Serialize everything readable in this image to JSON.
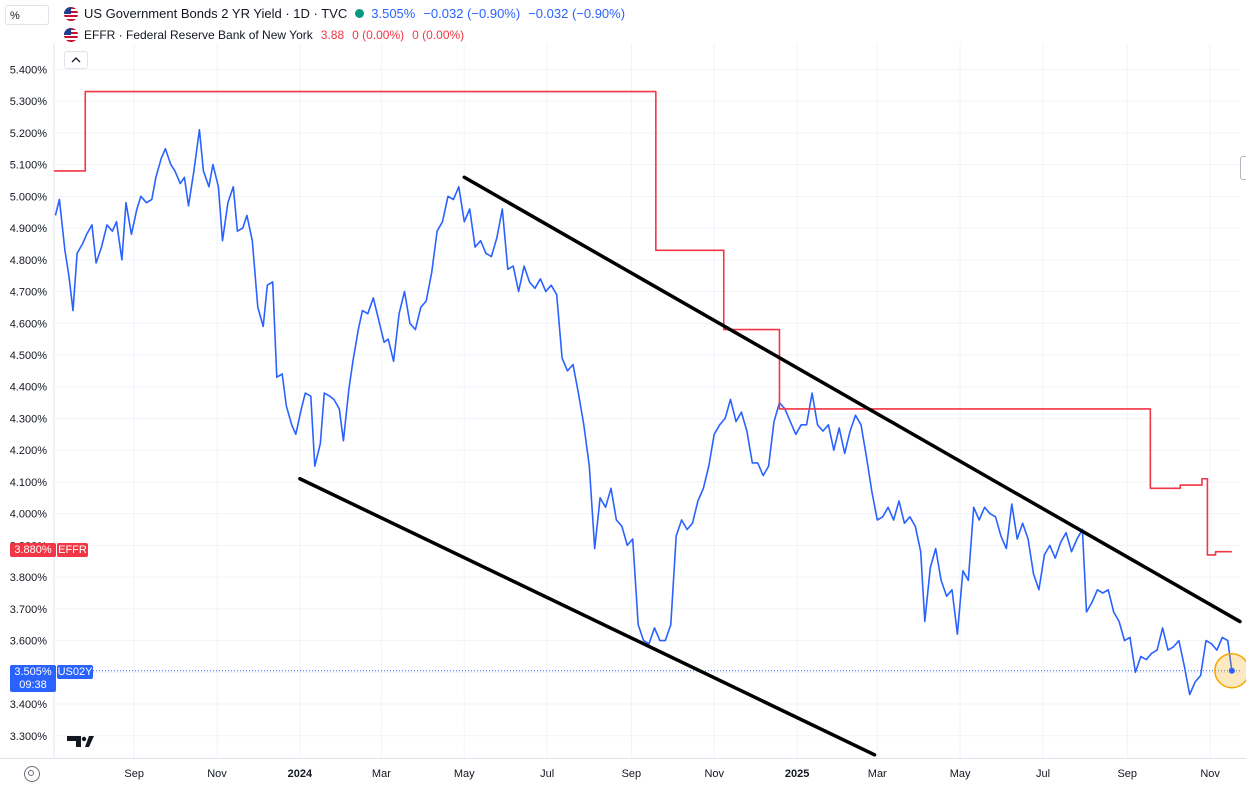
{
  "toolbar": {
    "unit_label": "%"
  },
  "legend": {
    "us02y": {
      "title": "US Government Bonds 2 YR Yield · 1D · TVC",
      "last": "3.505%",
      "change": "−0.032 (−0.90%)",
      "change2": "−0.032 (−0.90%)",
      "color": "#2962ff",
      "status_color": "#089981"
    },
    "effr": {
      "title": "EFFR · Federal Reserve Bank of New York",
      "last": "3.88",
      "change": "0 (0.00%)",
      "change2": "0 (0.00%)",
      "color": "#f23645"
    }
  },
  "price_tags": {
    "effr_value": "3.880%",
    "effr_name": "EFFR",
    "us02y_value": "3.505%",
    "us02y_countdown": "09:38",
    "us02y_name": "US02Y"
  },
  "chart_data": {
    "type": "line",
    "y_unit": "%",
    "ylim": [
      3.23,
      5.48
    ],
    "xlim": [
      "2023-07-04",
      "2025-11-23"
    ],
    "y_ticks": [
      "5.400%",
      "5.300%",
      "5.200%",
      "5.100%",
      "5.000%",
      "4.900%",
      "4.800%",
      "4.700%",
      "4.600%",
      "4.500%",
      "4.400%",
      "4.300%",
      "4.200%",
      "4.100%",
      "4.000%",
      "3.900%",
      "3.800%",
      "3.700%",
      "3.600%",
      "3.500%",
      "3.400%",
      "3.300%"
    ],
    "x_ticks": [
      {
        "date": "2023-09-01",
        "label": "Sep"
      },
      {
        "date": "2023-11-01",
        "label": "Nov"
      },
      {
        "date": "2024-01-01",
        "label": "2024",
        "bold": true
      },
      {
        "date": "2024-03-01",
        "label": "Mar"
      },
      {
        "date": "2024-05-01",
        "label": "May"
      },
      {
        "date": "2024-07-01",
        "label": "Jul"
      },
      {
        "date": "2024-09-01",
        "label": "Sep"
      },
      {
        "date": "2024-11-01",
        "label": "Nov"
      },
      {
        "date": "2025-01-01",
        "label": "2025",
        "bold": true
      },
      {
        "date": "2025-03-01",
        "label": "Mar"
      },
      {
        "date": "2025-05-01",
        "label": "May"
      },
      {
        "date": "2025-07-01",
        "label": "Jul"
      },
      {
        "date": "2025-09-01",
        "label": "Sep"
      },
      {
        "date": "2025-11-01",
        "label": "Nov"
      }
    ],
    "grid": true,
    "series": [
      {
        "name": "US02Y",
        "color": "#2962ff",
        "style": "line",
        "points": [
          [
            "2023-07-05",
            4.94
          ],
          [
            "2023-07-08",
            4.99
          ],
          [
            "2023-07-12",
            4.83
          ],
          [
            "2023-07-15",
            4.75
          ],
          [
            "2023-07-18",
            4.64
          ],
          [
            "2023-07-21",
            4.82
          ],
          [
            "2023-07-25",
            4.85
          ],
          [
            "2023-07-28",
            4.88
          ],
          [
            "2023-08-01",
            4.91
          ],
          [
            "2023-08-04",
            4.79
          ],
          [
            "2023-08-08",
            4.84
          ],
          [
            "2023-08-12",
            4.91
          ],
          [
            "2023-08-16",
            4.89
          ],
          [
            "2023-08-19",
            4.92
          ],
          [
            "2023-08-23",
            4.8
          ],
          [
            "2023-08-26",
            4.98
          ],
          [
            "2023-08-30",
            4.88
          ],
          [
            "2023-09-03",
            4.96
          ],
          [
            "2023-09-06",
            5.0
          ],
          [
            "2023-09-10",
            4.98
          ],
          [
            "2023-09-14",
            4.99
          ],
          [
            "2023-09-17",
            5.06
          ],
          [
            "2023-09-21",
            5.12
          ],
          [
            "2023-09-24",
            5.15
          ],
          [
            "2023-09-28",
            5.1
          ],
          [
            "2023-10-01",
            5.08
          ],
          [
            "2023-10-05",
            5.04
          ],
          [
            "2023-10-08",
            5.06
          ],
          [
            "2023-10-11",
            4.97
          ],
          [
            "2023-10-15",
            5.08
          ],
          [
            "2023-10-19",
            5.21
          ],
          [
            "2023-10-22",
            5.08
          ],
          [
            "2023-10-26",
            5.03
          ],
          [
            "2023-10-29",
            5.1
          ],
          [
            "2023-11-02",
            5.03
          ],
          [
            "2023-11-05",
            4.86
          ],
          [
            "2023-11-09",
            4.98
          ],
          [
            "2023-11-13",
            5.03
          ],
          [
            "2023-11-16",
            4.89
          ],
          [
            "2023-11-20",
            4.9
          ],
          [
            "2023-11-23",
            4.94
          ],
          [
            "2023-11-27",
            4.86
          ],
          [
            "2023-12-01",
            4.65
          ],
          [
            "2023-12-05",
            4.59
          ],
          [
            "2023-12-08",
            4.72
          ],
          [
            "2023-12-12",
            4.73
          ],
          [
            "2023-12-15",
            4.43
          ],
          [
            "2023-12-19",
            4.44
          ],
          [
            "2023-12-22",
            4.34
          ],
          [
            "2023-12-26",
            4.28
          ],
          [
            "2023-12-29",
            4.25
          ],
          [
            "2024-01-02",
            4.33
          ],
          [
            "2024-01-05",
            4.38
          ],
          [
            "2024-01-09",
            4.37
          ],
          [
            "2024-01-12",
            4.15
          ],
          [
            "2024-01-16",
            4.22
          ],
          [
            "2024-01-19",
            4.38
          ],
          [
            "2024-01-23",
            4.37
          ],
          [
            "2024-01-26",
            4.36
          ],
          [
            "2024-01-30",
            4.33
          ],
          [
            "2024-02-02",
            4.23
          ],
          [
            "2024-02-06",
            4.39
          ],
          [
            "2024-02-09",
            4.48
          ],
          [
            "2024-02-13",
            4.58
          ],
          [
            "2024-02-16",
            4.64
          ],
          [
            "2024-02-20",
            4.63
          ],
          [
            "2024-02-24",
            4.68
          ],
          [
            "2024-02-28",
            4.61
          ],
          [
            "2024-03-03",
            4.54
          ],
          [
            "2024-03-06",
            4.55
          ],
          [
            "2024-03-10",
            4.48
          ],
          [
            "2024-03-14",
            4.63
          ],
          [
            "2024-03-18",
            4.7
          ],
          [
            "2024-03-22",
            4.6
          ],
          [
            "2024-03-26",
            4.58
          ],
          [
            "2024-03-30",
            4.65
          ],
          [
            "2024-04-03",
            4.67
          ],
          [
            "2024-04-07",
            4.76
          ],
          [
            "2024-04-11",
            4.89
          ],
          [
            "2024-04-15",
            4.92
          ],
          [
            "2024-04-19",
            5.0
          ],
          [
            "2024-04-23",
            4.99
          ],
          [
            "2024-04-27",
            5.03
          ],
          [
            "2024-05-01",
            4.92
          ],
          [
            "2024-05-05",
            4.96
          ],
          [
            "2024-05-09",
            4.84
          ],
          [
            "2024-05-13",
            4.86
          ],
          [
            "2024-05-17",
            4.82
          ],
          [
            "2024-05-21",
            4.81
          ],
          [
            "2024-05-25",
            4.87
          ],
          [
            "2024-05-29",
            4.96
          ],
          [
            "2024-06-02",
            4.77
          ],
          [
            "2024-06-06",
            4.78
          ],
          [
            "2024-06-10",
            4.7
          ],
          [
            "2024-06-14",
            4.78
          ],
          [
            "2024-06-18",
            4.73
          ],
          [
            "2024-06-22",
            4.71
          ],
          [
            "2024-06-26",
            4.74
          ],
          [
            "2024-06-30",
            4.7
          ],
          [
            "2024-07-04",
            4.72
          ],
          [
            "2024-07-08",
            4.69
          ],
          [
            "2024-07-12",
            4.49
          ],
          [
            "2024-07-16",
            4.45
          ],
          [
            "2024-07-20",
            4.47
          ],
          [
            "2024-07-24",
            4.38
          ],
          [
            "2024-07-28",
            4.28
          ],
          [
            "2024-08-01",
            4.15
          ],
          [
            "2024-08-05",
            3.89
          ],
          [
            "2024-08-09",
            4.05
          ],
          [
            "2024-08-13",
            4.02
          ],
          [
            "2024-08-17",
            4.08
          ],
          [
            "2024-08-21",
            3.98
          ],
          [
            "2024-08-25",
            3.96
          ],
          [
            "2024-08-29",
            3.9
          ],
          [
            "2024-09-02",
            3.92
          ],
          [
            "2024-09-06",
            3.65
          ],
          [
            "2024-09-10",
            3.6
          ],
          [
            "2024-09-14",
            3.59
          ],
          [
            "2024-09-18",
            3.64
          ],
          [
            "2024-09-22",
            3.6
          ],
          [
            "2024-09-26",
            3.6
          ],
          [
            "2024-09-30",
            3.65
          ],
          [
            "2024-10-04",
            3.93
          ],
          [
            "2024-10-08",
            3.98
          ],
          [
            "2024-10-12",
            3.95
          ],
          [
            "2024-10-16",
            3.97
          ],
          [
            "2024-10-20",
            4.04
          ],
          [
            "2024-10-24",
            4.08
          ],
          [
            "2024-10-28",
            4.15
          ],
          [
            "2024-11-01",
            4.25
          ],
          [
            "2024-11-05",
            4.28
          ],
          [
            "2024-11-09",
            4.3
          ],
          [
            "2024-11-13",
            4.36
          ],
          [
            "2024-11-17",
            4.29
          ],
          [
            "2024-11-21",
            4.32
          ],
          [
            "2024-11-25",
            4.26
          ],
          [
            "2024-11-29",
            4.16
          ],
          [
            "2024-12-03",
            4.16
          ],
          [
            "2024-12-07",
            4.12
          ],
          [
            "2024-12-11",
            4.15
          ],
          [
            "2024-12-15",
            4.29
          ],
          [
            "2024-12-19",
            4.35
          ],
          [
            "2024-12-23",
            4.33
          ],
          [
            "2024-12-27",
            4.29
          ],
          [
            "2024-12-31",
            4.25
          ],
          [
            "2025-01-04",
            4.28
          ],
          [
            "2025-01-08",
            4.28
          ],
          [
            "2025-01-12",
            4.38
          ],
          [
            "2025-01-16",
            4.28
          ],
          [
            "2025-01-20",
            4.26
          ],
          [
            "2025-01-24",
            4.28
          ],
          [
            "2025-01-28",
            4.2
          ],
          [
            "2025-02-01",
            4.27
          ],
          [
            "2025-02-05",
            4.19
          ],
          [
            "2025-02-09",
            4.26
          ],
          [
            "2025-02-13",
            4.31
          ],
          [
            "2025-02-17",
            4.28
          ],
          [
            "2025-02-21",
            4.18
          ],
          [
            "2025-02-25",
            4.07
          ],
          [
            "2025-03-01",
            3.98
          ],
          [
            "2025-03-05",
            3.99
          ],
          [
            "2025-03-09",
            4.02
          ],
          [
            "2025-03-13",
            3.98
          ],
          [
            "2025-03-17",
            4.04
          ],
          [
            "2025-03-21",
            3.97
          ],
          [
            "2025-03-25",
            3.99
          ],
          [
            "2025-03-29",
            3.96
          ],
          [
            "2025-04-02",
            3.88
          ],
          [
            "2025-04-05",
            3.66
          ],
          [
            "2025-04-09",
            3.83
          ],
          [
            "2025-04-13",
            3.89
          ],
          [
            "2025-04-17",
            3.79
          ],
          [
            "2025-04-21",
            3.74
          ],
          [
            "2025-04-25",
            3.76
          ],
          [
            "2025-04-29",
            3.62
          ],
          [
            "2025-05-03",
            3.82
          ],
          [
            "2025-05-07",
            3.79
          ],
          [
            "2025-05-11",
            4.02
          ],
          [
            "2025-05-15",
            3.98
          ],
          [
            "2025-05-19",
            4.02
          ],
          [
            "2025-05-23",
            4.0
          ],
          [
            "2025-05-27",
            3.99
          ],
          [
            "2025-05-31",
            3.93
          ],
          [
            "2025-06-04",
            3.89
          ],
          [
            "2025-06-08",
            4.03
          ],
          [
            "2025-06-12",
            3.92
          ],
          [
            "2025-06-16",
            3.97
          ],
          [
            "2025-06-20",
            3.92
          ],
          [
            "2025-06-24",
            3.81
          ],
          [
            "2025-06-28",
            3.76
          ],
          [
            "2025-07-02",
            3.87
          ],
          [
            "2025-07-06",
            3.9
          ],
          [
            "2025-07-10",
            3.86
          ],
          [
            "2025-07-14",
            3.91
          ],
          [
            "2025-07-18",
            3.94
          ],
          [
            "2025-07-22",
            3.88
          ],
          [
            "2025-07-26",
            3.92
          ],
          [
            "2025-07-30",
            3.95
          ],
          [
            "2025-08-02",
            3.69
          ],
          [
            "2025-08-06",
            3.72
          ],
          [
            "2025-08-10",
            3.76
          ],
          [
            "2025-08-14",
            3.75
          ],
          [
            "2025-08-18",
            3.76
          ],
          [
            "2025-08-22",
            3.69
          ],
          [
            "2025-08-26",
            3.66
          ],
          [
            "2025-08-30",
            3.6
          ],
          [
            "2025-09-03",
            3.61
          ],
          [
            "2025-09-07",
            3.5
          ],
          [
            "2025-09-11",
            3.55
          ],
          [
            "2025-09-15",
            3.54
          ],
          [
            "2025-09-19",
            3.56
          ],
          [
            "2025-09-23",
            3.57
          ],
          [
            "2025-09-27",
            3.64
          ],
          [
            "2025-10-01",
            3.57
          ],
          [
            "2025-10-05",
            3.58
          ],
          [
            "2025-10-09",
            3.6
          ],
          [
            "2025-10-13",
            3.52
          ],
          [
            "2025-10-17",
            3.43
          ],
          [
            "2025-10-21",
            3.47
          ],
          [
            "2025-10-25",
            3.49
          ],
          [
            "2025-10-29",
            3.6
          ],
          [
            "2025-11-02",
            3.59
          ],
          [
            "2025-11-06",
            3.57
          ],
          [
            "2025-11-10",
            3.61
          ],
          [
            "2025-11-14",
            3.6
          ],
          [
            "2025-11-17",
            3.505
          ]
        ]
      },
      {
        "name": "EFFR",
        "color": "#f23645",
        "style": "step",
        "points": [
          [
            "2023-07-04",
            5.08
          ],
          [
            "2023-07-27",
            5.33
          ],
          [
            "2024-09-19",
            4.83
          ],
          [
            "2024-11-08",
            4.58
          ],
          [
            "2024-12-19",
            4.33
          ],
          [
            "2025-09-18",
            4.08
          ],
          [
            "2025-10-10",
            4.09
          ],
          [
            "2025-10-26",
            4.11
          ],
          [
            "2025-10-30",
            3.87
          ],
          [
            "2025-11-05",
            3.88
          ],
          [
            "2025-11-17",
            3.88
          ]
        ]
      }
    ],
    "annotations": [
      {
        "type": "trendline",
        "color": "#000000",
        "from": [
          "2024-05-01",
          5.06
        ],
        "to": [
          "2025-11-23",
          3.66
        ]
      },
      {
        "type": "trendline",
        "color": "#000000",
        "from": [
          "2024-01-01",
          4.11
        ],
        "to": [
          "2025-02-27",
          3.24
        ]
      },
      {
        "type": "marker-circle",
        "color": "#f7a600",
        "at": [
          "2025-11-17",
          3.505
        ]
      }
    ]
  }
}
